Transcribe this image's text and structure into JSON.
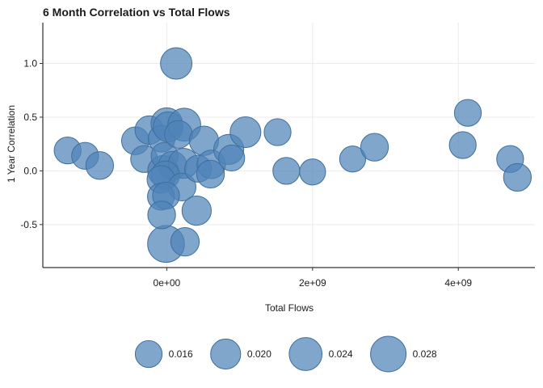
{
  "chart_data": {
    "type": "scatter",
    "title": "6 Month Correlation vs Total Flows",
    "xlabel": "Total Flows",
    "ylabel": "1 Year Correlation",
    "xlim": [
      -1700000000.0,
      5050000000.0
    ],
    "ylim": [
      -0.9,
      1.38
    ],
    "x_ticks": [
      0,
      2000000000.0,
      4000000000.0
    ],
    "x_tick_labels": [
      "0e+00",
      "2e+09",
      "4e+09"
    ],
    "y_ticks": [
      -0.5,
      0,
      0.5,
      1.0
    ],
    "y_tick_labels": [
      "-0.5",
      "0.0",
      "0.5",
      "1.0"
    ],
    "grid": true,
    "legend_position": "bottom",
    "size_legend": [
      {
        "value": 0.016,
        "label": "0.016"
      },
      {
        "value": 0.02,
        "label": "0.020"
      },
      {
        "value": 0.024,
        "label": "0.024"
      },
      {
        "value": 0.028,
        "label": "0.028"
      }
    ],
    "colors": {
      "point": "#4f84b8",
      "point_stroke": "#3f6f9c"
    },
    "points": [
      {
        "x": -1360000000.0,
        "y": 0.19,
        "size": 0.016
      },
      {
        "x": -1120000000.0,
        "y": 0.14,
        "size": 0.016
      },
      {
        "x": -920000000.0,
        "y": 0.05,
        "size": 0.017
      },
      {
        "x": -430000000.0,
        "y": 0.28,
        "size": 0.017
      },
      {
        "x": -310000000.0,
        "y": 0.11,
        "size": 0.016
      },
      {
        "x": -240000000.0,
        "y": 0.38,
        "size": 0.018
      },
      {
        "x": -50000000.0,
        "y": 0.0,
        "size": 0.021
      },
      {
        "x": 0.0,
        "y": 0.44,
        "size": 0.022
      },
      {
        "x": -70000000.0,
        "y": 0.3,
        "size": 0.016
      },
      {
        "x": -30000000.0,
        "y": 0.14,
        "size": 0.016
      },
      {
        "x": 20000000.0,
        "y": 0.41,
        "size": 0.02
      },
      {
        "x": 130000000.0,
        "y": 1.0,
        "size": 0.022
      },
      {
        "x": 240000000.0,
        "y": 0.43,
        "size": 0.024
      },
      {
        "x": 160000000.0,
        "y": 0.34,
        "size": 0.017
      },
      {
        "x": 80000000.0,
        "y": 0.05,
        "size": 0.018
      },
      {
        "x": 230000000.0,
        "y": 0.07,
        "size": 0.02
      },
      {
        "x": -20000000.0,
        "y": -0.04,
        "size": 0.018
      },
      {
        "x": -80000000.0,
        "y": -0.08,
        "size": 0.017
      },
      {
        "x": 210000000.0,
        "y": -0.15,
        "size": 0.017
      },
      {
        "x": -80000000.0,
        "y": -0.24,
        "size": 0.016
      },
      {
        "x": -10000000.0,
        "y": -0.23,
        "size": 0.016
      },
      {
        "x": -10000000.0,
        "y": -0.68,
        "size": 0.03
      },
      {
        "x": -70000000.0,
        "y": -0.41,
        "size": 0.017
      },
      {
        "x": 410000000.0,
        "y": -0.37,
        "size": 0.019
      },
      {
        "x": 250000000.0,
        "y": -0.66,
        "size": 0.018
      },
      {
        "x": 430000000.0,
        "y": 0.02,
        "size": 0.016
      },
      {
        "x": 510000000.0,
        "y": 0.28,
        "size": 0.019
      },
      {
        "x": 610000000.0,
        "y": 0.06,
        "size": 0.018
      },
      {
        "x": 600000000.0,
        "y": -0.03,
        "size": 0.017
      },
      {
        "x": 850000000.0,
        "y": 0.2,
        "size": 0.02
      },
      {
        "x": 890000000.0,
        "y": 0.12,
        "size": 0.015
      },
      {
        "x": 1080000000.0,
        "y": 0.36,
        "size": 0.021
      },
      {
        "x": 1520000000.0,
        "y": 0.36,
        "size": 0.016
      },
      {
        "x": 1640000000.0,
        "y": 0.0,
        "size": 0.016
      },
      {
        "x": 2000000000.0,
        "y": -0.01,
        "size": 0.015
      },
      {
        "x": 2550000000.0,
        "y": 0.11,
        "size": 0.015
      },
      {
        "x": 2850000000.0,
        "y": 0.22,
        "size": 0.017
      },
      {
        "x": 4060000000.0,
        "y": 0.24,
        "size": 0.016
      },
      {
        "x": 4130000000.0,
        "y": 0.54,
        "size": 0.016
      },
      {
        "x": 4710000000.0,
        "y": 0.11,
        "size": 0.016
      },
      {
        "x": 4810000000.0,
        "y": -0.06,
        "size": 0.017
      }
    ]
  }
}
